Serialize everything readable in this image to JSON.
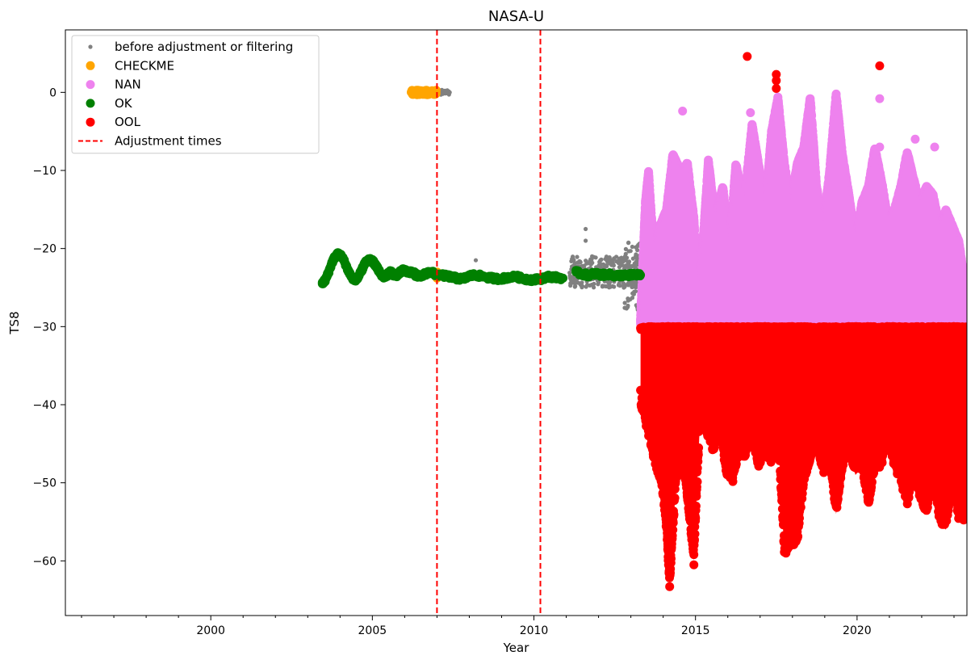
{
  "chart_data": {
    "type": "scatter",
    "title": "NASA-U",
    "xlabel": "Year",
    "ylabel": "TS8",
    "xlim": [
      1995.5,
      2023.4
    ],
    "ylim": [
      -67,
      8
    ],
    "xticks": [
      2000,
      2005,
      2010,
      2015,
      2020
    ],
    "yticks": [
      0,
      -10,
      -20,
      -30,
      -40,
      -50,
      -60
    ],
    "legend_position": "top-left",
    "adjustment_times": [
      2007.0,
      2010.2
    ],
    "series": [
      {
        "name": "before adjustment or filtering",
        "color": "#808080",
        "marker": "small-dot",
        "bands": [
          {
            "x0": 2006.2,
            "x1": 2007.4,
            "lo": -0.3,
            "hi": 0.3
          },
          {
            "x0": 2011.1,
            "x1": 2013.4,
            "lo": -25.0,
            "hi": -21.0
          },
          {
            "x0": 2012.8,
            "x1": 2013.4,
            "lo": -28.0,
            "hi": -19.0
          }
        ],
        "points": [
          [
            2008.2,
            -21.5
          ],
          [
            2011.6,
            -17.5
          ],
          [
            2011.6,
            -19.0
          ],
          [
            2011.2,
            -21.2
          ],
          [
            2011.8,
            -21.0
          ],
          [
            2012.9,
            -27.5
          ],
          [
            2013.2,
            -20.2
          ]
        ]
      },
      {
        "name": "CHECKME",
        "color": "#FFA500",
        "marker": "dot",
        "bands": [
          {
            "x0": 2006.2,
            "x1": 2007.0,
            "lo": -0.3,
            "hi": 0.3
          }
        ],
        "points": [
          [
            2007.0,
            -23.0
          ],
          [
            2007.0,
            -23.8
          ]
        ]
      },
      {
        "name": "NAN",
        "color": "#EE82EE",
        "marker": "dot",
        "peaks": [
          [
            2013.3,
            -29
          ],
          [
            2013.45,
            -14
          ],
          [
            2013.55,
            -10
          ],
          [
            2013.7,
            -20
          ],
          [
            2013.9,
            -17
          ],
          [
            2014.1,
            -15
          ],
          [
            2014.3,
            -7.8
          ],
          [
            2014.55,
            -10
          ],
          [
            2014.75,
            -9
          ],
          [
            2014.95,
            -16
          ],
          [
            2015.1,
            -27
          ],
          [
            2015.25,
            -18
          ],
          [
            2015.4,
            -8.5
          ],
          [
            2015.6,
            -16
          ],
          [
            2015.85,
            -12
          ],
          [
            2016.05,
            -20
          ],
          [
            2016.25,
            -9
          ],
          [
            2016.5,
            -14
          ],
          [
            2016.75,
            -4
          ],
          [
            2016.95,
            -9
          ],
          [
            2017.15,
            -15
          ],
          [
            2017.35,
            -5
          ],
          [
            2017.55,
            -0.5
          ],
          [
            2017.75,
            -9
          ],
          [
            2017.95,
            -14
          ],
          [
            2018.15,
            -9
          ],
          [
            2018.35,
            -7
          ],
          [
            2018.55,
            -0.5
          ],
          [
            2018.75,
            -12
          ],
          [
            2018.95,
            -17
          ],
          [
            2019.15,
            -10
          ],
          [
            2019.35,
            0
          ],
          [
            2019.55,
            -8
          ],
          [
            2019.75,
            -13
          ],
          [
            2019.95,
            -19
          ],
          [
            2020.15,
            -14
          ],
          [
            2020.35,
            -12
          ],
          [
            2020.55,
            -7
          ],
          [
            2020.75,
            -11
          ],
          [
            2020.95,
            -16
          ],
          [
            2021.15,
            -15
          ],
          [
            2021.35,
            -12
          ],
          [
            2021.55,
            -7.5
          ],
          [
            2021.75,
            -11
          ],
          [
            2021.95,
            -14
          ],
          [
            2022.15,
            -12
          ],
          [
            2022.35,
            -13
          ],
          [
            2022.55,
            -17
          ],
          [
            2022.75,
            -15
          ],
          [
            2022.95,
            -17
          ],
          [
            2023.15,
            -19
          ],
          [
            2023.4,
            -26
          ]
        ],
        "floor": -30,
        "points": [
          [
            2014.6,
            -2.4
          ],
          [
            2016.7,
            -2.6
          ],
          [
            2020.7,
            -0.8
          ],
          [
            2020.7,
            -7.0
          ],
          [
            2021.8,
            -6.0
          ],
          [
            2022.4,
            -7.0
          ]
        ]
      },
      {
        "name": "OK",
        "color": "#008000",
        "marker": "dot",
        "points": [
          [
            2003.45,
            -24.5
          ],
          [
            2003.55,
            -24.0
          ],
          [
            2003.65,
            -23.0
          ],
          [
            2003.75,
            -21.8
          ],
          [
            2003.85,
            -21.0
          ],
          [
            2003.95,
            -20.7
          ],
          [
            2004.05,
            -21.0
          ],
          [
            2004.15,
            -21.8
          ],
          [
            2004.25,
            -22.8
          ],
          [
            2004.35,
            -23.6
          ],
          [
            2004.45,
            -24.0
          ],
          [
            2004.55,
            -23.8
          ],
          [
            2004.65,
            -23.0
          ],
          [
            2004.75,
            -22.0
          ],
          [
            2004.85,
            -21.6
          ],
          [
            2004.95,
            -21.5
          ],
          [
            2005.05,
            -21.8
          ],
          [
            2005.15,
            -22.5
          ],
          [
            2005.25,
            -23.2
          ],
          [
            2005.35,
            -23.6
          ],
          [
            2005.45,
            -23.4
          ],
          [
            2005.55,
            -23.0
          ],
          [
            2005.65,
            -23.3
          ],
          [
            2005.75,
            -23.4
          ],
          [
            2005.85,
            -23.1
          ],
          [
            2005.95,
            -22.8
          ],
          [
            2006.05,
            -22.9
          ],
          [
            2006.15,
            -23.1
          ],
          [
            2006.25,
            -23.0
          ],
          [
            2006.35,
            -23.4
          ],
          [
            2006.5,
            -23.6
          ],
          [
            2006.65,
            -23.2
          ],
          [
            2006.8,
            -23.0
          ],
          [
            2006.95,
            -23.3
          ],
          [
            2007.25,
            -23.5
          ],
          [
            2007.4,
            -23.6
          ],
          [
            2007.6,
            -23.8
          ],
          [
            2007.8,
            -23.9
          ],
          [
            2008.0,
            -23.5
          ],
          [
            2008.2,
            -23.4
          ],
          [
            2008.45,
            -23.6
          ],
          [
            2008.7,
            -23.8
          ],
          [
            2008.95,
            -23.9
          ],
          [
            2009.2,
            -23.7
          ],
          [
            2009.45,
            -23.6
          ],
          [
            2009.7,
            -23.9
          ],
          [
            2009.95,
            -24.0
          ],
          [
            2010.2,
            -23.9
          ],
          [
            2010.45,
            -23.6
          ],
          [
            2010.7,
            -23.7
          ],
          [
            2010.9,
            -23.8
          ],
          [
            2011.3,
            -23.0
          ],
          [
            2011.5,
            -23.3
          ],
          [
            2011.7,
            -23.4
          ],
          [
            2011.9,
            -23.2
          ],
          [
            2012.1,
            -23.4
          ],
          [
            2012.3,
            -23.3
          ],
          [
            2012.5,
            -23.5
          ],
          [
            2012.7,
            -23.4
          ],
          [
            2012.9,
            -23.5
          ],
          [
            2013.1,
            -23.3
          ],
          [
            2013.3,
            -23.4
          ]
        ]
      },
      {
        "name": "OOL",
        "color": "#FF0000",
        "marker": "dot",
        "ceiling": -30,
        "troughs": [
          [
            2013.3,
            -40
          ],
          [
            2013.55,
            -44
          ],
          [
            2013.75,
            -48
          ],
          [
            2013.95,
            -50
          ],
          [
            2014.1,
            -56
          ],
          [
            2014.2,
            -63
          ],
          [
            2014.4,
            -50
          ],
          [
            2014.55,
            -46
          ],
          [
            2014.75,
            -52
          ],
          [
            2014.95,
            -60
          ],
          [
            2015.15,
            -41
          ],
          [
            2015.35,
            -44
          ],
          [
            2015.55,
            -46
          ],
          [
            2015.75,
            -43
          ],
          [
            2015.95,
            -49
          ],
          [
            2016.15,
            -50
          ],
          [
            2016.35,
            -46
          ],
          [
            2016.55,
            -47
          ],
          [
            2016.75,
            -44
          ],
          [
            2016.95,
            -48
          ],
          [
            2017.15,
            -46
          ],
          [
            2017.35,
            -48
          ],
          [
            2017.55,
            -44
          ],
          [
            2017.75,
            -59
          ],
          [
            2017.95,
            -58
          ],
          [
            2018.15,
            -58
          ],
          [
            2018.35,
            -50
          ],
          [
            2018.55,
            -47
          ],
          [
            2018.75,
            -45
          ],
          [
            2018.95,
            -49
          ],
          [
            2019.15,
            -47
          ],
          [
            2019.35,
            -54
          ],
          [
            2019.55,
            -48
          ],
          [
            2019.75,
            -46
          ],
          [
            2019.95,
            -49
          ],
          [
            2020.15,
            -48
          ],
          [
            2020.35,
            -53
          ],
          [
            2020.55,
            -48
          ],
          [
            2020.75,
            -48
          ],
          [
            2020.95,
            -44
          ],
          [
            2021.15,
            -48
          ],
          [
            2021.35,
            -50
          ],
          [
            2021.55,
            -53
          ],
          [
            2021.75,
            -49
          ],
          [
            2021.95,
            -52
          ],
          [
            2022.15,
            -54
          ],
          [
            2022.35,
            -49
          ],
          [
            2022.55,
            -55
          ],
          [
            2022.75,
            -56
          ],
          [
            2022.95,
            -50
          ],
          [
            2023.15,
            -55
          ],
          [
            2023.4,
            -55
          ]
        ],
        "points": [
          [
            2016.6,
            4.6
          ],
          [
            2017.5,
            2.3
          ],
          [
            2017.5,
            1.5
          ],
          [
            2017.5,
            0.5
          ],
          [
            2020.7,
            3.4
          ],
          [
            2014.2,
            -63.3
          ],
          [
            2014.2,
            -59.5
          ],
          [
            2014.95,
            -60.5
          ],
          [
            2017.8,
            -59.0
          ]
        ]
      }
    ],
    "legend": [
      {
        "label": "before adjustment or filtering",
        "color": "#808080",
        "kind": "small-dot"
      },
      {
        "label": "CHECKME",
        "color": "#FFA500",
        "kind": "dot"
      },
      {
        "label": "NAN",
        "color": "#EE82EE",
        "kind": "dot"
      },
      {
        "label": "OK",
        "color": "#008000",
        "kind": "dot"
      },
      {
        "label": "OOL",
        "color": "#FF0000",
        "kind": "dot"
      },
      {
        "label": "Adjustment times",
        "color": "#FF0000",
        "kind": "dashed-line"
      }
    ]
  }
}
